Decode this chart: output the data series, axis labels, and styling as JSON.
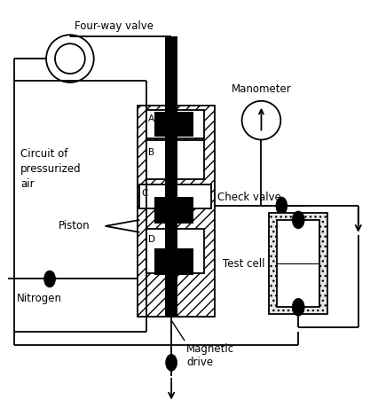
{
  "bg_color": "#ffffff",
  "line_color": "#000000",
  "labels": {
    "four_way_valve": "Four-way valve",
    "circuit": "Circuit of\npressurized\nair",
    "piston": "Piston",
    "nitrogen": "Nitrogen",
    "check_valve": "Check valve",
    "magnetic_drive": "Magnetic\ndrive",
    "manometer": "Manometer",
    "test_cell": "Test cell",
    "A": "A",
    "B": "B",
    "C": "C",
    "D": "D"
  },
  "figsize": [
    4.27,
    4.69
  ],
  "dpi": 100
}
